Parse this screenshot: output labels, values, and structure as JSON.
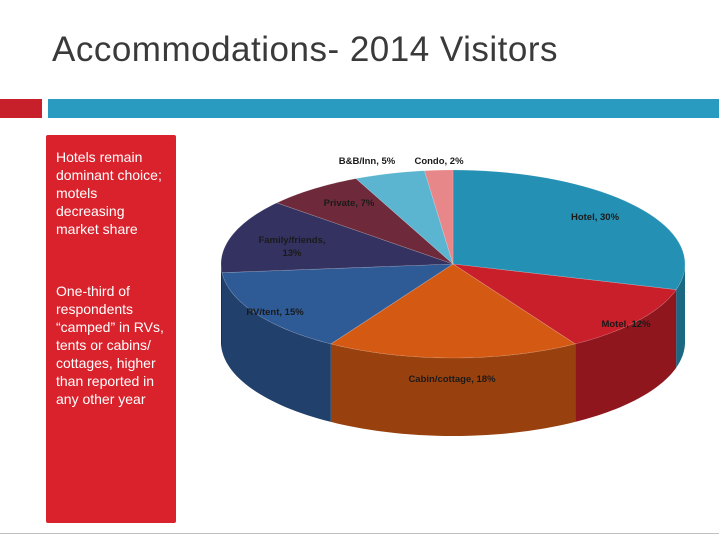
{
  "slide": {
    "title": "Accommodations- 2014 Visitors",
    "bullets": [
      "Hotels remain dominant choice; motels decreasing market share",
      "One-third of respondents “camped” in RVs, tents or cabins/ cottages, higher than reported in any other year"
    ],
    "colors": {
      "accent_red": "#d9222c",
      "accent_blue": "#2a9bc0"
    }
  },
  "chart_data": {
    "type": "pie",
    "style": "3d",
    "categories": [
      "Hotel",
      "Motel",
      "Cabin/cottage",
      "RV/tent",
      "Family/friends",
      "Private",
      "B&B/Inn",
      "Condo"
    ],
    "values": [
      30,
      12,
      18,
      15,
      13,
      7,
      5,
      2
    ],
    "labels": [
      "Hotel, 30%",
      "Motel, 12%",
      "Cabin/cottage, 18%",
      "RV/tent, 15%",
      "Family/friends, 13%",
      "Private, 7%",
      "B&B/Inn, 5%",
      "Condo, 2%"
    ],
    "colors": [
      "#2490b4",
      "#c81f2a",
      "#d45a14",
      "#2e5a96",
      "#343260",
      "#6e2a3a",
      "#5cb5d0",
      "#e8878a"
    ]
  }
}
